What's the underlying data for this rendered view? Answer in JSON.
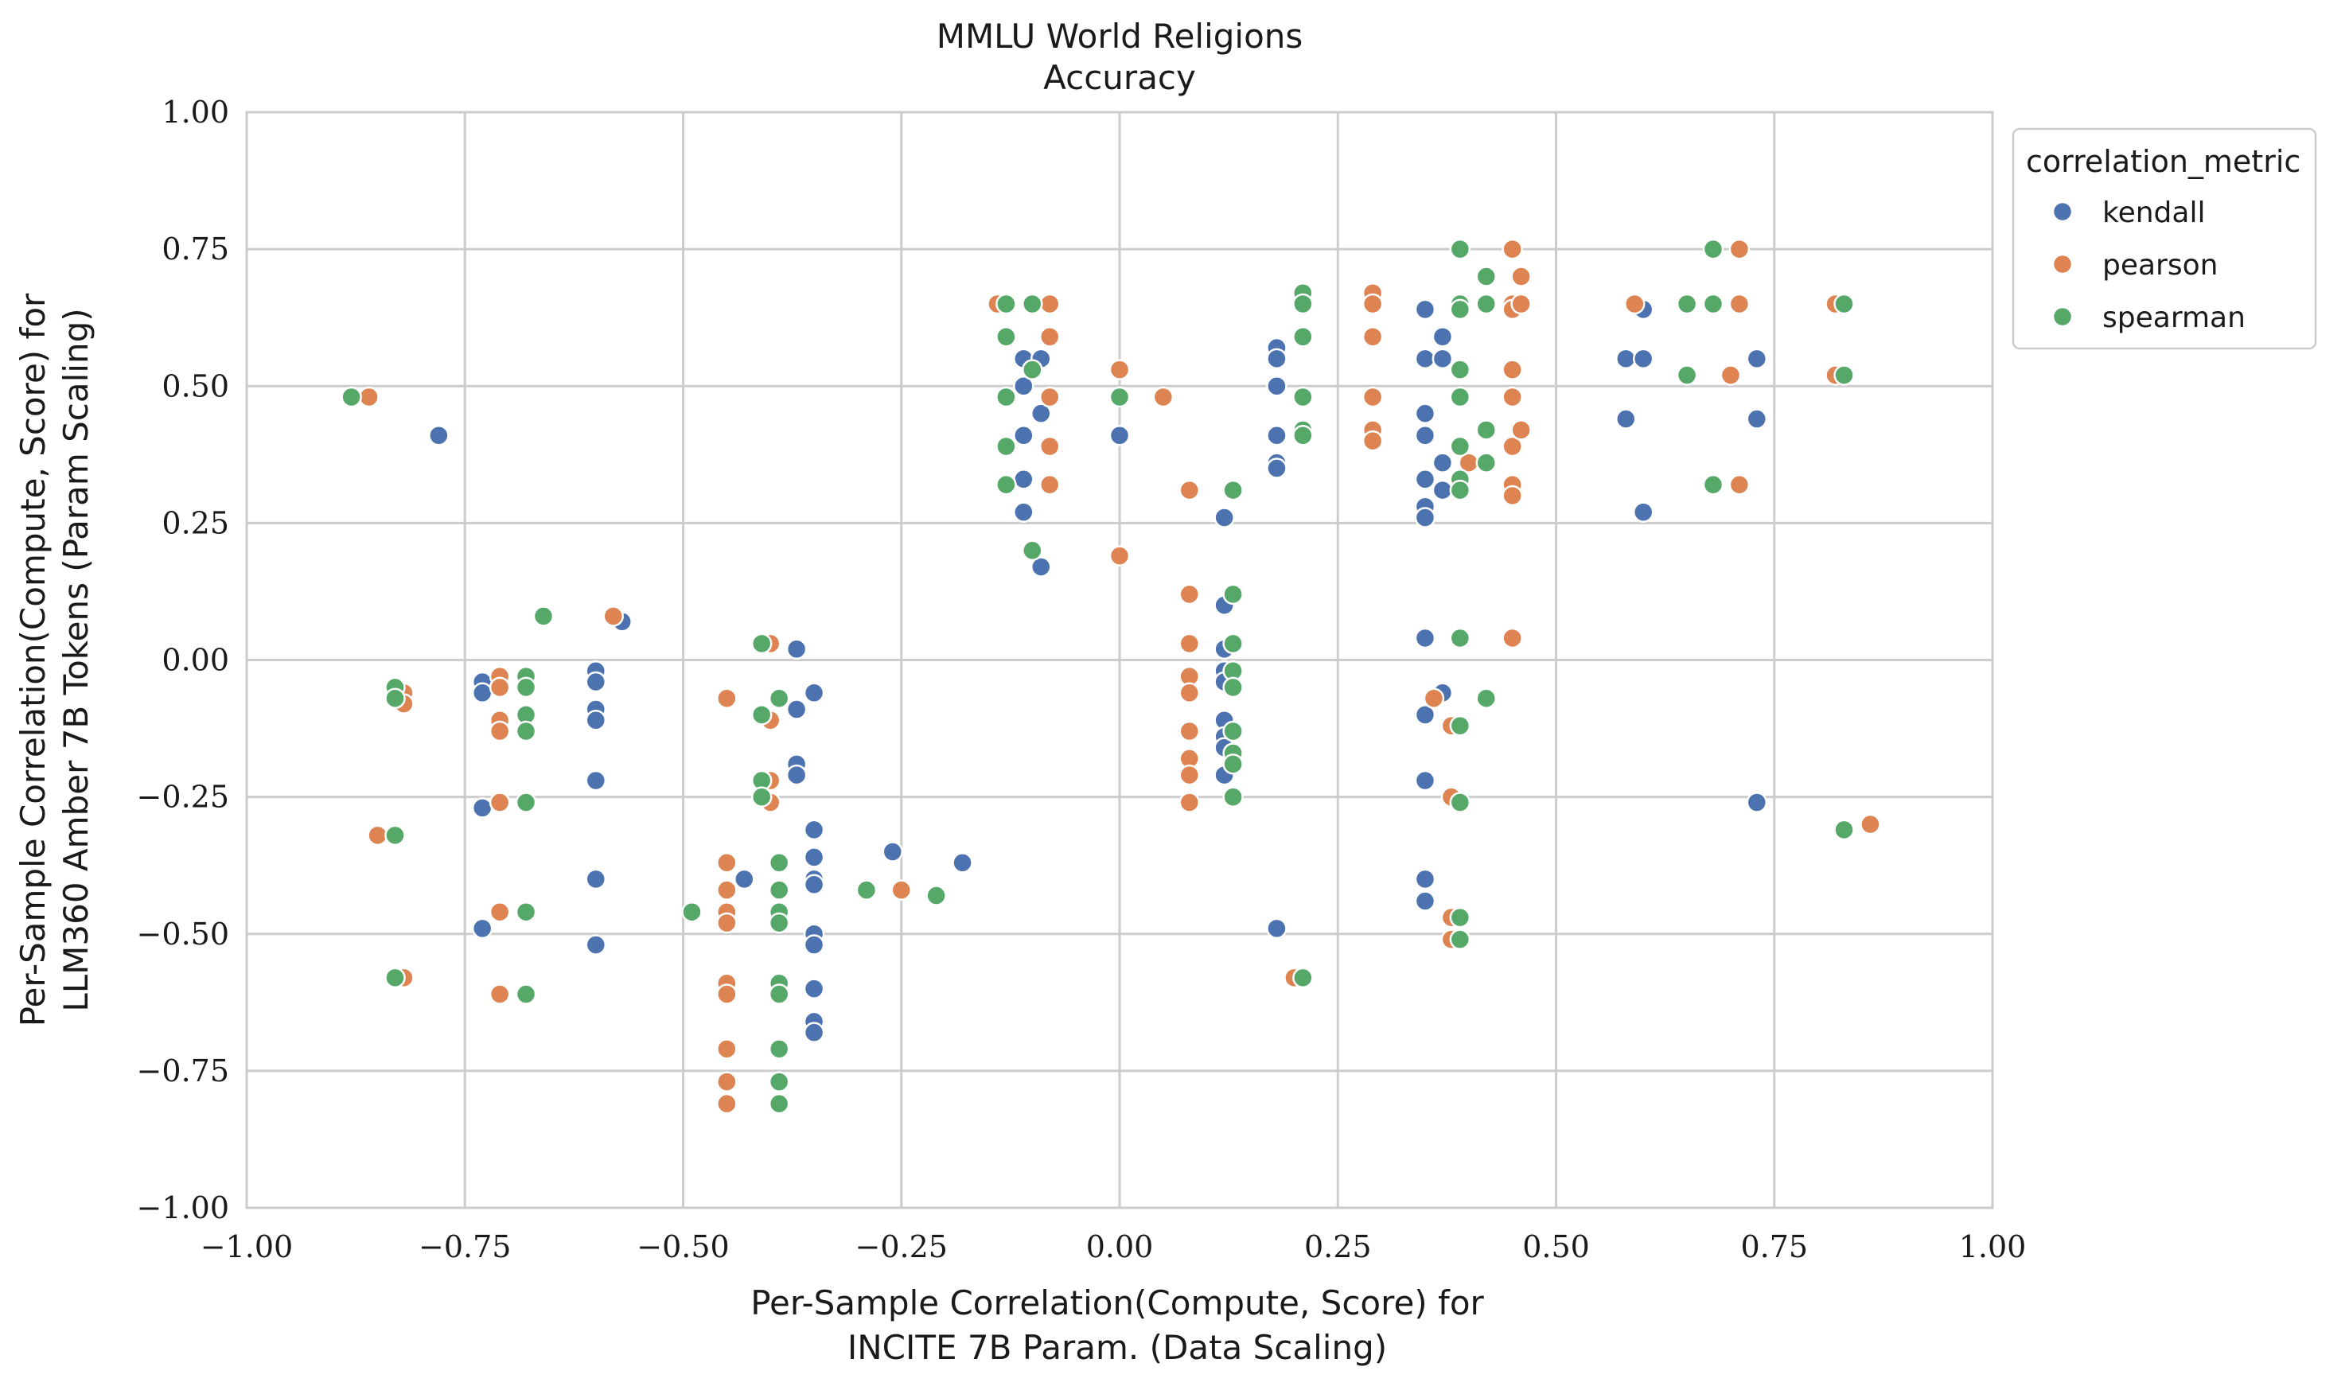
{
  "chart_data": {
    "type": "scatter",
    "title": [
      "MMLU World Religions",
      "Accuracy"
    ],
    "xlabel": [
      "Per-Sample Correlation(Compute, Score) for",
      "INCITE 7B Param. (Data Scaling)"
    ],
    "ylabel": [
      "Per-Sample Correlation(Compute, Score) for",
      "LLM360 Amber 7B Tokens (Param Scaling)"
    ],
    "xlim": [
      -1.0,
      1.0
    ],
    "ylim": [
      -1.0,
      1.0
    ],
    "xticks": [
      "−1.00",
      "−0.75",
      "−0.50",
      "−0.25",
      "0.00",
      "0.25",
      "0.50",
      "0.75",
      "1.00"
    ],
    "yticks": [
      "−1.00",
      "−0.75",
      "−0.50",
      "−0.25",
      "0.00",
      "0.25",
      "0.50",
      "0.75",
      "1.00"
    ],
    "grid": true,
    "legend": {
      "title": "correlation_metric",
      "placement": "outside-top-right"
    },
    "series": [
      {
        "name": "kendall",
        "color": "#4c72b0",
        "points": [
          [
            -0.78,
            0.41
          ],
          [
            -0.73,
            -0.04
          ],
          [
            -0.73,
            -0.06
          ],
          [
            -0.73,
            -0.27
          ],
          [
            -0.73,
            -0.49
          ],
          [
            -0.6,
            -0.02
          ],
          [
            -0.6,
            -0.04
          ],
          [
            -0.6,
            -0.09
          ],
          [
            -0.6,
            -0.11
          ],
          [
            -0.6,
            -0.22
          ],
          [
            -0.6,
            -0.4
          ],
          [
            -0.6,
            -0.52
          ],
          [
            -0.57,
            0.07
          ],
          [
            -0.43,
            -0.4
          ],
          [
            -0.37,
            0.02
          ],
          [
            -0.37,
            -0.09
          ],
          [
            -0.37,
            -0.19
          ],
          [
            -0.37,
            -0.21
          ],
          [
            -0.35,
            -0.06
          ],
          [
            -0.35,
            -0.31
          ],
          [
            -0.35,
            -0.36
          ],
          [
            -0.35,
            -0.4
          ],
          [
            -0.35,
            -0.41
          ],
          [
            -0.35,
            -0.5
          ],
          [
            -0.35,
            -0.52
          ],
          [
            -0.35,
            -0.6
          ],
          [
            -0.35,
            -0.66
          ],
          [
            -0.35,
            -0.68
          ],
          [
            -0.26,
            -0.35
          ],
          [
            -0.18,
            -0.37
          ],
          [
            -0.11,
            0.55
          ],
          [
            -0.11,
            0.5
          ],
          [
            -0.11,
            0.41
          ],
          [
            -0.11,
            0.33
          ],
          [
            -0.11,
            0.27
          ],
          [
            -0.09,
            0.55
          ],
          [
            -0.09,
            0.45
          ],
          [
            -0.09,
            0.17
          ],
          [
            0.0,
            0.41
          ],
          [
            0.12,
            0.26
          ],
          [
            0.12,
            0.1
          ],
          [
            0.12,
            0.02
          ],
          [
            0.12,
            -0.02
          ],
          [
            0.12,
            -0.04
          ],
          [
            0.12,
            -0.11
          ],
          [
            0.12,
            -0.14
          ],
          [
            0.12,
            -0.16
          ],
          [
            0.12,
            -0.21
          ],
          [
            0.18,
            0.57
          ],
          [
            0.18,
            0.55
          ],
          [
            0.18,
            0.5
          ],
          [
            0.18,
            0.41
          ],
          [
            0.18,
            0.36
          ],
          [
            0.18,
            0.35
          ],
          [
            0.18,
            -0.49
          ],
          [
            0.35,
            0.64
          ],
          [
            0.35,
            0.55
          ],
          [
            0.35,
            0.45
          ],
          [
            0.35,
            0.41
          ],
          [
            0.35,
            0.33
          ],
          [
            0.35,
            0.28
          ],
          [
            0.35,
            0.26
          ],
          [
            0.35,
            0.04
          ],
          [
            0.35,
            -0.1
          ],
          [
            0.35,
            -0.22
          ],
          [
            0.35,
            -0.4
          ],
          [
            0.35,
            -0.44
          ],
          [
            0.37,
            0.59
          ],
          [
            0.37,
            0.55
          ],
          [
            0.37,
            0.36
          ],
          [
            0.37,
            0.31
          ],
          [
            0.37,
            -0.06
          ],
          [
            0.58,
            0.55
          ],
          [
            0.58,
            0.44
          ],
          [
            0.6,
            0.64
          ],
          [
            0.6,
            0.55
          ],
          [
            0.6,
            0.27
          ],
          [
            0.73,
            0.55
          ],
          [
            0.73,
            0.44
          ],
          [
            0.73,
            -0.26
          ]
        ]
      },
      {
        "name": "pearson",
        "color": "#dd8452",
        "points": [
          [
            -0.86,
            0.48
          ],
          [
            -0.85,
            -0.32
          ],
          [
            -0.82,
            -0.06
          ],
          [
            -0.82,
            -0.08
          ],
          [
            -0.82,
            -0.58
          ],
          [
            -0.71,
            -0.03
          ],
          [
            -0.71,
            -0.05
          ],
          [
            -0.71,
            -0.11
          ],
          [
            -0.71,
            -0.13
          ],
          [
            -0.71,
            -0.26
          ],
          [
            -0.71,
            -0.46
          ],
          [
            -0.71,
            -0.61
          ],
          [
            -0.58,
            0.08
          ],
          [
            -0.45,
            -0.07
          ],
          [
            -0.45,
            -0.37
          ],
          [
            -0.45,
            -0.42
          ],
          [
            -0.45,
            -0.46
          ],
          [
            -0.45,
            -0.48
          ],
          [
            -0.45,
            -0.59
          ],
          [
            -0.45,
            -0.61
          ],
          [
            -0.45,
            -0.71
          ],
          [
            -0.45,
            -0.77
          ],
          [
            -0.45,
            -0.81
          ],
          [
            -0.4,
            0.03
          ],
          [
            -0.4,
            -0.11
          ],
          [
            -0.4,
            -0.22
          ],
          [
            -0.4,
            -0.26
          ],
          [
            -0.29,
            -0.42
          ],
          [
            -0.25,
            -0.42
          ],
          [
            -0.14,
            0.65
          ],
          [
            -0.08,
            0.65
          ],
          [
            -0.08,
            0.59
          ],
          [
            -0.08,
            0.48
          ],
          [
            -0.08,
            0.39
          ],
          [
            -0.08,
            0.32
          ],
          [
            0.0,
            0.53
          ],
          [
            0.0,
            0.19
          ],
          [
            0.05,
            0.48
          ],
          [
            0.08,
            0.31
          ],
          [
            0.08,
            0.12
          ],
          [
            0.08,
            0.03
          ],
          [
            0.08,
            -0.03
          ],
          [
            0.08,
            -0.06
          ],
          [
            0.08,
            -0.13
          ],
          [
            0.08,
            -0.18
          ],
          [
            0.08,
            -0.21
          ],
          [
            0.08,
            -0.26
          ],
          [
            0.2,
            -0.58
          ],
          [
            0.29,
            0.67
          ],
          [
            0.29,
            0.65
          ],
          [
            0.29,
            0.59
          ],
          [
            0.29,
            0.48
          ],
          [
            0.29,
            0.42
          ],
          [
            0.29,
            0.4
          ],
          [
            0.38,
            -0.12
          ],
          [
            0.38,
            -0.25
          ],
          [
            0.38,
            -0.47
          ],
          [
            0.38,
            -0.51
          ],
          [
            0.36,
            -0.07
          ],
          [
            0.45,
            0.75
          ],
          [
            0.45,
            0.65
          ],
          [
            0.45,
            0.64
          ],
          [
            0.45,
            0.53
          ],
          [
            0.45,
            0.48
          ],
          [
            0.45,
            0.39
          ],
          [
            0.45,
            0.32
          ],
          [
            0.45,
            0.3
          ],
          [
            0.45,
            0.04
          ],
          [
            0.46,
            0.7
          ],
          [
            0.46,
            0.65
          ],
          [
            0.46,
            0.42
          ],
          [
            0.4,
            0.36
          ],
          [
            0.59,
            0.65
          ],
          [
            0.7,
            0.52
          ],
          [
            0.71,
            0.75
          ],
          [
            0.71,
            0.65
          ],
          [
            0.71,
            0.32
          ],
          [
            0.82,
            0.65
          ],
          [
            0.82,
            0.52
          ],
          [
            0.86,
            -0.3
          ]
        ]
      },
      {
        "name": "spearman",
        "color": "#55a868",
        "points": [
          [
            -0.88,
            0.48
          ],
          [
            -0.83,
            -0.05
          ],
          [
            -0.83,
            -0.07
          ],
          [
            -0.83,
            -0.32
          ],
          [
            -0.83,
            -0.58
          ],
          [
            -0.66,
            0.08
          ],
          [
            -0.68,
            -0.03
          ],
          [
            -0.68,
            -0.05
          ],
          [
            -0.68,
            -0.1
          ],
          [
            -0.68,
            -0.13
          ],
          [
            -0.68,
            -0.26
          ],
          [
            -0.68,
            -0.46
          ],
          [
            -0.68,
            -0.61
          ],
          [
            -0.49,
            -0.46
          ],
          [
            -0.41,
            0.03
          ],
          [
            -0.41,
            -0.1
          ],
          [
            -0.41,
            -0.22
          ],
          [
            -0.41,
            -0.25
          ],
          [
            -0.39,
            -0.07
          ],
          [
            -0.39,
            -0.37
          ],
          [
            -0.39,
            -0.42
          ],
          [
            -0.39,
            -0.46
          ],
          [
            -0.39,
            -0.48
          ],
          [
            -0.39,
            -0.59
          ],
          [
            -0.39,
            -0.61
          ],
          [
            -0.39,
            -0.71
          ],
          [
            -0.39,
            -0.77
          ],
          [
            -0.39,
            -0.81
          ],
          [
            -0.29,
            -0.42
          ],
          [
            -0.21,
            -0.43
          ],
          [
            -0.13,
            0.65
          ],
          [
            -0.13,
            0.59
          ],
          [
            -0.13,
            0.48
          ],
          [
            -0.13,
            0.39
          ],
          [
            -0.13,
            0.32
          ],
          [
            -0.1,
            0.65
          ],
          [
            -0.1,
            0.53
          ],
          [
            -0.1,
            0.2
          ],
          [
            0.0,
            0.48
          ],
          [
            0.13,
            0.31
          ],
          [
            0.13,
            0.12
          ],
          [
            0.13,
            0.03
          ],
          [
            0.13,
            -0.02
          ],
          [
            0.13,
            -0.05
          ],
          [
            0.13,
            -0.13
          ],
          [
            0.13,
            -0.17
          ],
          [
            0.13,
            -0.19
          ],
          [
            0.13,
            -0.25
          ],
          [
            0.21,
            0.67
          ],
          [
            0.21,
            0.65
          ],
          [
            0.21,
            0.59
          ],
          [
            0.21,
            0.48
          ],
          [
            0.21,
            0.42
          ],
          [
            0.21,
            0.41
          ],
          [
            0.21,
            -0.58
          ],
          [
            0.39,
            0.75
          ],
          [
            0.39,
            0.65
          ],
          [
            0.39,
            0.64
          ],
          [
            0.39,
            0.53
          ],
          [
            0.39,
            0.48
          ],
          [
            0.39,
            0.39
          ],
          [
            0.39,
            0.33
          ],
          [
            0.39,
            0.31
          ],
          [
            0.39,
            0.04
          ],
          [
            0.39,
            -0.12
          ],
          [
            0.39,
            -0.26
          ],
          [
            0.39,
            -0.47
          ],
          [
            0.39,
            -0.51
          ],
          [
            0.42,
            0.7
          ],
          [
            0.42,
            0.65
          ],
          [
            0.42,
            0.42
          ],
          [
            0.42,
            0.36
          ],
          [
            0.42,
            -0.07
          ],
          [
            0.65,
            0.65
          ],
          [
            0.65,
            0.52
          ],
          [
            0.68,
            0.75
          ],
          [
            0.68,
            0.65
          ],
          [
            0.68,
            0.32
          ],
          [
            0.83,
            0.65
          ],
          [
            0.83,
            0.52
          ],
          [
            0.83,
            -0.31
          ]
        ]
      }
    ]
  }
}
